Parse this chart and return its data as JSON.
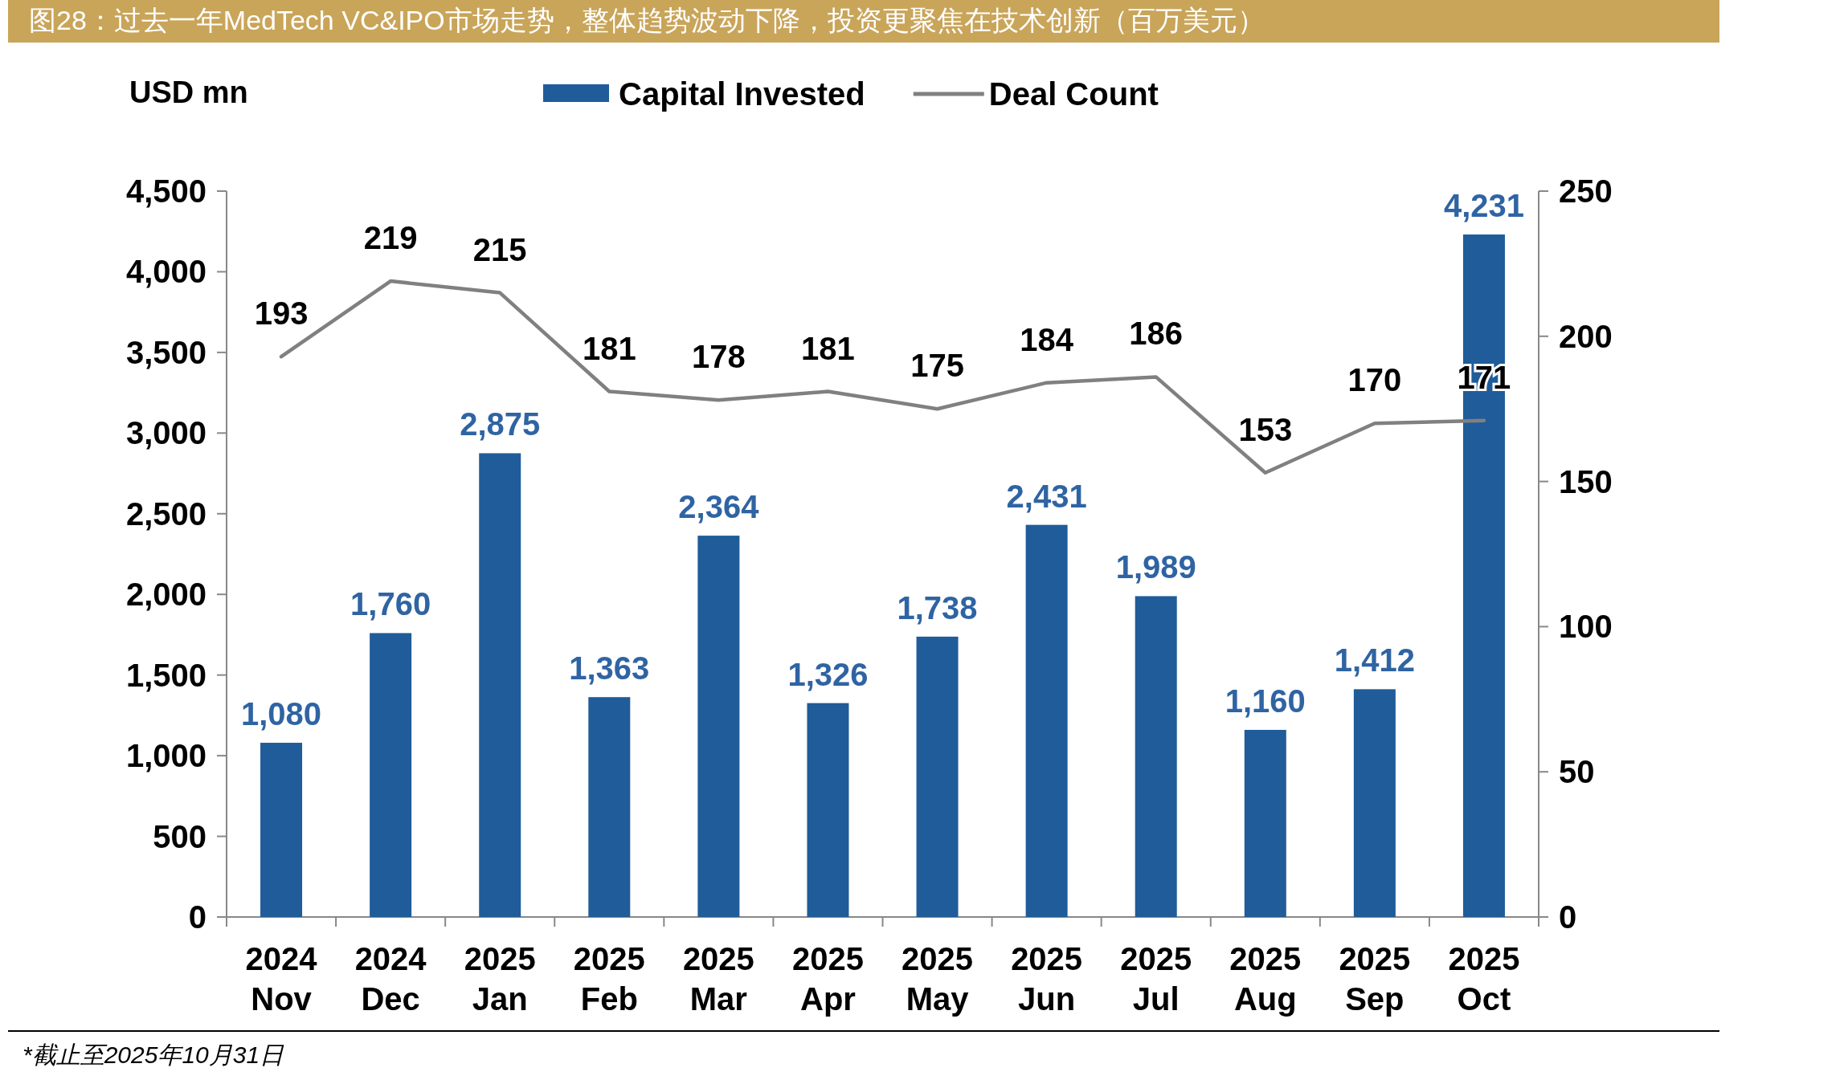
{
  "chart_data": {
    "type": "bar",
    "title": "图28：过去一年MedTech VC&IPO市场走势，整体趋势波动下降，投资更聚焦在技术创新（百万美元）",
    "ylabel": "USD mn",
    "categories": [
      "2024 Nov",
      "2024 Dec",
      "2025 Jan",
      "2025 Feb",
      "2025 Mar",
      "2025 Apr",
      "2025 May",
      "2025 Jun",
      "2025 Jul",
      "2025 Aug",
      "2025 Sep",
      "2025 Oct"
    ],
    "series": [
      {
        "name": "Capital Invested",
        "color": "#1f5c99",
        "values": [
          1080,
          1760,
          2875,
          1363,
          2364,
          1326,
          1738,
          2431,
          1989,
          1160,
          1412,
          4231
        ],
        "value_labels": [
          "1,080",
          "1,760",
          "2,875",
          "1,363",
          "2,364",
          "1,326",
          "1,738",
          "2,431",
          "1,989",
          "1,160",
          "1,412",
          "4,231"
        ]
      },
      {
        "name": "Deal Count",
        "type": "line",
        "axis": "y2",
        "color": "#808080",
        "values": [
          193,
          219,
          215,
          181,
          178,
          181,
          175,
          184,
          186,
          153,
          170,
          171
        ],
        "value_labels": [
          "193",
          "219",
          "215",
          "181",
          "178",
          "181",
          "175",
          "184",
          "186",
          "153",
          "170",
          "171"
        ]
      }
    ],
    "ylim": [
      0,
      4500
    ],
    "yticks": [
      {
        "value": 0,
        "label": "0"
      },
      {
        "value": 500,
        "label": "500"
      },
      {
        "value": 1000,
        "label": "1,000"
      },
      {
        "value": 1500,
        "label": "1,500"
      },
      {
        "value": 2000,
        "label": "2,000"
      },
      {
        "value": 2500,
        "label": "2,500"
      },
      {
        "value": 3000,
        "label": "3,000"
      },
      {
        "value": 3500,
        "label": "3,500"
      },
      {
        "value": 4000,
        "label": "4,000"
      },
      {
        "value": 4500,
        "label": "4,500"
      }
    ],
    "y2lim": [
      0,
      250
    ],
    "y2ticks": [
      0,
      50,
      100,
      150,
      200,
      250
    ],
    "legend": "top",
    "marker": "none",
    "line_style": "solid",
    "annotations": [
      "*截止至2025年10月31日"
    ]
  }
}
